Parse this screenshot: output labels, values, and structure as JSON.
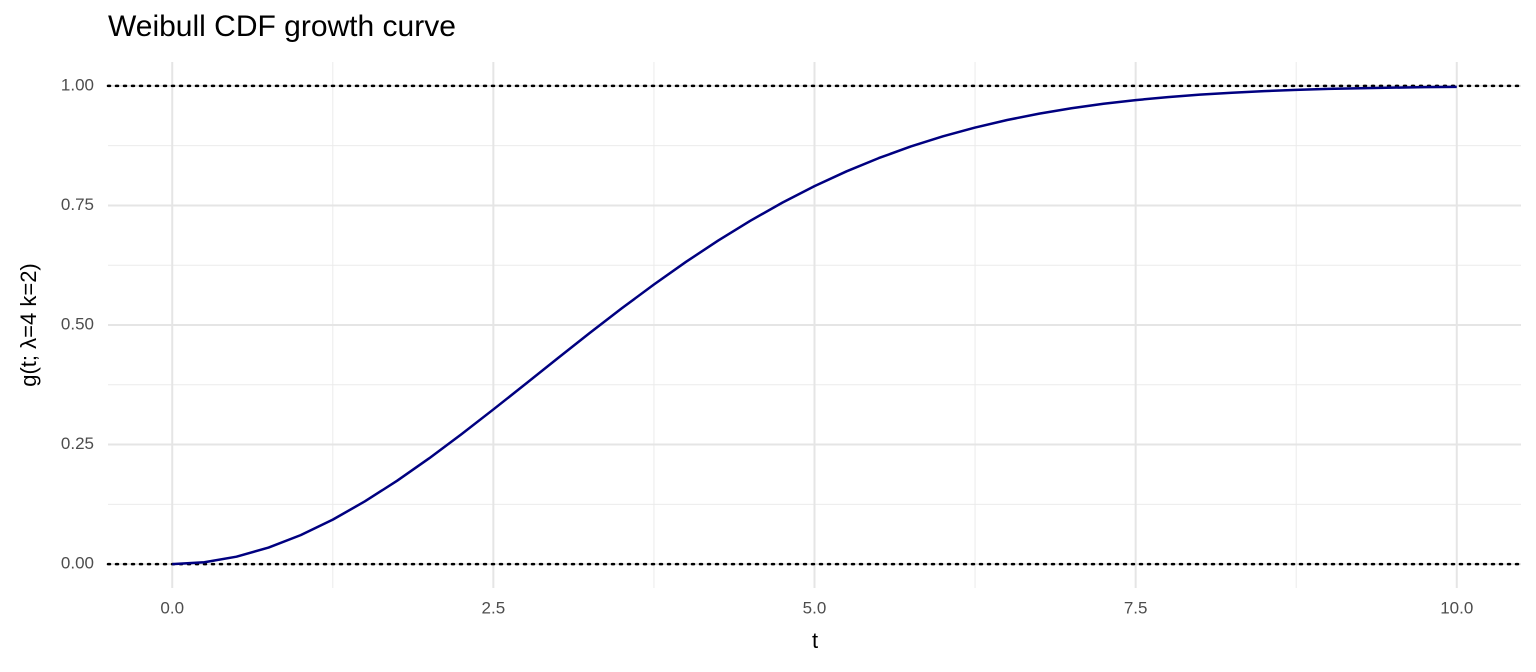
{
  "chart_data": {
    "type": "line",
    "title": "Weibull CDF growth curve",
    "x_label": "t",
    "y_label": "g(t; λ=4 k=2)",
    "x": [
      0,
      0.25,
      0.5,
      0.75,
      1,
      1.25,
      1.5,
      1.75,
      2,
      2.25,
      2.5,
      2.75,
      3,
      3.25,
      3.5,
      3.75,
      4,
      4.25,
      4.5,
      4.75,
      5,
      5.25,
      5.5,
      5.75,
      6,
      6.25,
      6.5,
      6.75,
      7,
      7.25,
      7.5,
      7.75,
      8,
      8.25,
      8.5,
      8.75,
      9,
      9.25,
      9.5,
      9.75,
      10
    ],
    "series": [
      {
        "color": "#000080",
        "values": [
          0,
          0.0039,
          0.0155,
          0.0345,
          0.0606,
          0.093,
          0.1312,
          0.1742,
          0.2212,
          0.2712,
          0.3234,
          0.3766,
          0.4302,
          0.4832,
          0.535,
          0.5847,
          0.6321,
          0.6766,
          0.7179,
          0.7559,
          0.7904,
          0.8214,
          0.849,
          0.8734,
          0.8946,
          0.9129,
          0.9287,
          0.942,
          0.9532,
          0.9626,
          0.9703,
          0.9766,
          0.9817,
          0.9858,
          0.9891,
          0.9916,
          0.9937,
          0.9952,
          0.9964,
          0.9974,
          0.9981
        ]
      }
    ],
    "xlim": [
      -0.5,
      10.5
    ],
    "ylim": [
      -0.05,
      1.05
    ],
    "xticks": [
      {
        "value": 0,
        "label": "0.0"
      },
      2.5,
      {
        "value": 5,
        "label": "5.0"
      },
      7.5,
      {
        "value": 10,
        "label": "10.0"
      }
    ],
    "yticks": [
      {
        "value": 0,
        "label": "0.00"
      },
      0.25,
      {
        "value": 0.5,
        "label": "0.50"
      },
      0.75,
      {
        "value": 1,
        "label": "1.00"
      }
    ],
    "hlines": [
      0,
      1
    ],
    "grid": true,
    "minor_grid": true
  }
}
